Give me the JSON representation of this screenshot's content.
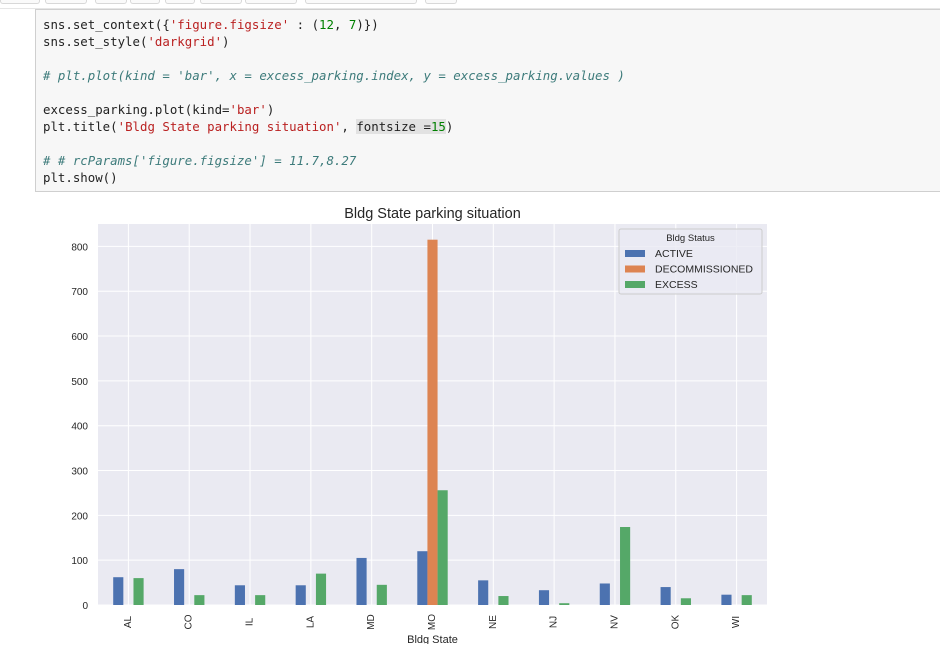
{
  "code_cell": {
    "lines": [
      {
        "parts": [
          [
            "sns.set_context({",
            ""
          ],
          [
            "'figure.figsize'",
            "str"
          ],
          [
            " : (",
            ""
          ],
          [
            "12",
            "num"
          ],
          [
            ", ",
            ""
          ],
          [
            "7",
            "num"
          ],
          [
            ")})",
            ""
          ]
        ]
      },
      {
        "parts": [
          [
            "sns.set_style(",
            ""
          ],
          [
            "'darkgrid'",
            "str"
          ],
          [
            ")",
            ""
          ]
        ]
      },
      {
        "parts": []
      },
      {
        "parts": [
          [
            "# plt.plot(kind = 'bar', x = excess_parking.index, y = excess_parking.values )",
            "com"
          ]
        ]
      },
      {
        "parts": []
      },
      {
        "parts": [
          [
            "excess_parking.plot(kind=",
            ""
          ],
          [
            "'bar'",
            "str"
          ],
          [
            ")",
            ""
          ]
        ]
      },
      {
        "parts": [
          [
            "plt.title(",
            ""
          ],
          [
            "'Bldg State parking situation'",
            "str"
          ],
          [
            ", ",
            ""
          ],
          [
            "fontsize =",
            "hl"
          ],
          [
            "15",
            "hlnum"
          ],
          [
            ")",
            ""
          ]
        ]
      },
      {
        "parts": []
      },
      {
        "parts": [
          [
            "# # rcParams['figure.figsize'] = 11.7,8.27",
            "com"
          ]
        ]
      },
      {
        "parts": [
          [
            "plt.show()",
            ""
          ]
        ]
      }
    ]
  },
  "chart_data": {
    "type": "bar",
    "title": "Bldg State parking situation",
    "xlabel": "Bldg State",
    "ylabel": "",
    "ylim": [
      0,
      850
    ],
    "yticks": [
      0,
      100,
      200,
      300,
      400,
      500,
      600,
      700,
      800
    ],
    "grid": true,
    "legend_position": "top-right",
    "legend_title": "Bldg Status",
    "categories": [
      "AL",
      "CO",
      "IL",
      "LA",
      "MD",
      "MO",
      "NE",
      "NJ",
      "NV",
      "OK",
      "WI"
    ],
    "series": [
      {
        "name": "ACTIVE",
        "color": "#4c72b0",
        "values": [
          62,
          80,
          44,
          44,
          105,
          120,
          55,
          33,
          48,
          40,
          23
        ]
      },
      {
        "name": "DECOMMISSIONED",
        "color": "#dd8452",
        "values": [
          0,
          0,
          0,
          0,
          0,
          815,
          0,
          0,
          0,
          0,
          0
        ]
      },
      {
        "name": "EXCESS",
        "color": "#55a868",
        "values": [
          60,
          22,
          22,
          70,
          45,
          256,
          20,
          4,
          174,
          15,
          22
        ]
      }
    ]
  }
}
